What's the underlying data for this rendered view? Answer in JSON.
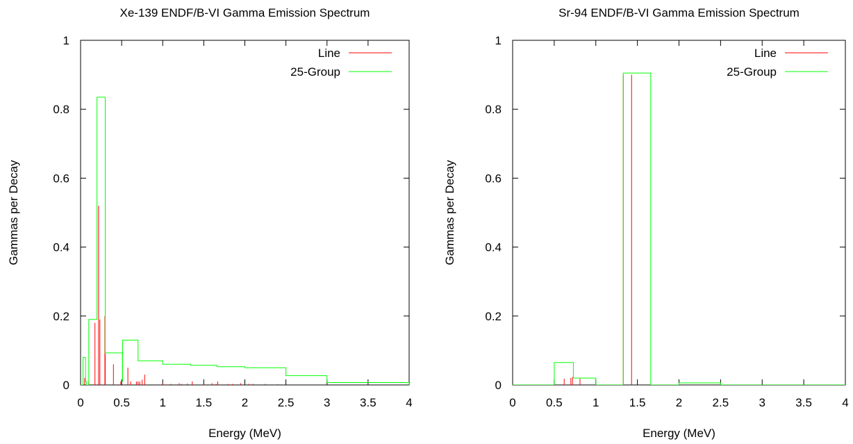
{
  "chart_data": [
    {
      "type": "line",
      "title": "Xe-139 ENDF/B-VI Gamma Emission Spectrum",
      "xlabel": "Energy (MeV)",
      "ylabel": "Gammas per Decay",
      "xlim": [
        0,
        4
      ],
      "ylim": [
        0,
        1
      ],
      "xticks": [
        "0",
        "0.5",
        "1",
        "1.5",
        "2",
        "2.5",
        "3",
        "3.5",
        "4"
      ],
      "yticks": [
        "0",
        "0.2",
        "0.4",
        "0.6",
        "0.8",
        "1"
      ],
      "legend_position": "top-right",
      "grid": false,
      "series": [
        {
          "name": "Line",
          "color": "#ff0000",
          "style": "impulses",
          "points": [
            [
              0.05,
              0.02
            ],
            [
              0.1,
              0.01
            ],
            [
              0.175,
              0.18
            ],
            [
              0.219,
              0.52
            ],
            [
              0.235,
              0.19
            ],
            [
              0.296,
              0.2
            ],
            [
              0.3,
              0.09
            ],
            [
              0.4,
              0.06
            ],
            [
              0.49,
              0.01
            ],
            [
              0.576,
              0.05
            ],
            [
              0.61,
              0.01
            ],
            [
              0.68,
              0.01
            ],
            [
              0.7,
              0.01
            ],
            [
              0.72,
              0.01
            ],
            [
              0.75,
              0.015
            ],
            [
              0.78,
              0.03
            ],
            [
              1.0,
              0.005
            ],
            [
              1.1,
              0.003
            ],
            [
              1.2,
              0.005
            ],
            [
              1.23,
              0.003
            ],
            [
              1.3,
              0.004
            ],
            [
              1.36,
              0.01
            ],
            [
              1.5,
              0.003
            ],
            [
              1.6,
              0.005
            ],
            [
              1.65,
              0.003
            ],
            [
              1.67,
              0.01
            ],
            [
              1.8,
              0.003
            ],
            [
              1.85,
              0.003
            ],
            [
              1.95,
              0.005
            ],
            [
              2.05,
              0.003
            ],
            [
              2.1,
              0.003
            ],
            [
              2.25,
              0.003
            ],
            [
              2.4,
              0.002
            ]
          ]
        },
        {
          "name": "25-Group",
          "color": "#00ff00",
          "style": "histogram",
          "edges": [
            0,
            0.01,
            0.02,
            0.03,
            0.045,
            0.06,
            0.07,
            0.075,
            0.1,
            0.15,
            0.2,
            0.3,
            0.4,
            0.45,
            0.51,
            0.512,
            0.6,
            0.7,
            0.8,
            1.0,
            1.33,
            1.34,
            1.5,
            1.66,
            2.0,
            2.5,
            3.0,
            4.0
          ],
          "values": [
            0,
            0,
            0,
            0.08,
            0.08,
            0.01,
            0,
            0,
            0.19,
            0.19,
            0.835,
            0.093,
            0.093,
            0.093,
            0.01,
            0.13,
            0.13,
            0.07,
            0.07,
            0.06,
            0.06,
            0.057,
            0.057,
            0.053,
            0.05,
            0.027,
            0.007
          ]
        }
      ]
    },
    {
      "type": "line",
      "title": "Sr-94 ENDF/B-VI Gamma Emission Spectrum",
      "xlabel": "Energy (MeV)",
      "ylabel": "Gammas per Decay",
      "xlim": [
        0,
        4
      ],
      "ylim": [
        0,
        1
      ],
      "xticks": [
        "0",
        "0.5",
        "1",
        "1.5",
        "2",
        "2.5",
        "3",
        "3.5",
        "4"
      ],
      "yticks": [
        "0",
        "0.2",
        "0.4",
        "0.6",
        "0.8",
        "1"
      ],
      "legend_position": "top-right",
      "grid": false,
      "series": [
        {
          "name": "Line",
          "color": "#ff0000",
          "style": "impulses",
          "points": [
            [
              0.62,
              0.018
            ],
            [
              0.7,
              0.02
            ],
            [
              0.72,
              0.023
            ],
            [
              0.81,
              0.018
            ],
            [
              1.33,
              0.9
            ],
            [
              1.43,
              0.9
            ]
          ]
        },
        {
          "name": "25-Group",
          "color": "#00ff00",
          "style": "histogram",
          "edges": [
            0,
            0.5,
            0.73,
            1.0,
            1.33,
            1.66,
            2.0,
            2.5,
            4.0
          ],
          "values": [
            0,
            0.065,
            0.02,
            0,
            0.905,
            0,
            0.006,
            0
          ]
        }
      ]
    }
  ]
}
